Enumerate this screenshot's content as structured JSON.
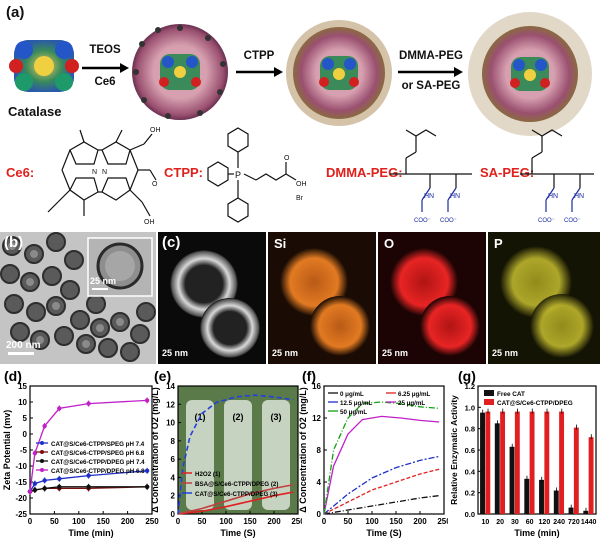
{
  "panel_a": {
    "label": "(a)",
    "catalase_label": "Catalase",
    "step1": [
      "TEOS",
      "Ce6"
    ],
    "step2": "CTPP",
    "step3": [
      "DMMA-PEG",
      "or SA-PEG"
    ],
    "chem": {
      "ce6": "Ce6:",
      "ctpp": "CTPP:",
      "dmma": "DMMA-PEG:",
      "sa": "SA-PEG:"
    }
  },
  "panel_b": {
    "label": "(b)",
    "scale_main": "200 nm",
    "scale_inset": "25 nm"
  },
  "panel_c": {
    "label": "(c)",
    "channels": [
      "Si",
      "O",
      "P"
    ],
    "scale": "25 nm",
    "colors": {
      "si": "#e0741e",
      "o": "#d81c1c",
      "p": "#c8c020"
    }
  },
  "chart_data": [
    {
      "panel": "(d)",
      "type": "line",
      "xlabel": "Time (min)",
      "ylabel": "Zeta Potential (mv)",
      "xlim": [
        0,
        250
      ],
      "ylim": [
        -25,
        15
      ],
      "xticks": [
        0,
        50,
        100,
        150,
        200,
        250
      ],
      "yticks": [
        -25,
        -20,
        -15,
        -10,
        -5,
        0,
        5,
        10,
        15
      ],
      "legend": "center-right",
      "series": [
        {
          "name": "CAT@S/Ce6-CTPP/SPEG  pH 7.4",
          "color": "#1f2fc8",
          "x": [
            0,
            10,
            30,
            60,
            120,
            240
          ],
          "y": [
            -18,
            -15.5,
            -14.5,
            -14,
            -13,
            -11.5
          ]
        },
        {
          "name": "CAT@S/Ce6-CTPP/SPEG  pH 6.8",
          "color": "#7a1010",
          "x": [
            0,
            10,
            30,
            60,
            120,
            240
          ],
          "y": [
            -18,
            -17.5,
            -17,
            -17,
            -17,
            -16.5
          ]
        },
        {
          "name": "CAT@S/Ce6-CTPP/DPEG  pH 7.4",
          "color": "#101010",
          "x": [
            0,
            10,
            30,
            60,
            120,
            240
          ],
          "y": [
            -18,
            -17.5,
            -17,
            -16.5,
            -16.5,
            -16.5
          ]
        },
        {
          "name": "CAT@S/Ce6-CTPP/DPEG  pH 6.8",
          "color": "#c020c8",
          "x": [
            0,
            10,
            30,
            60,
            120,
            240
          ],
          "y": [
            -18,
            -6,
            2.5,
            8,
            9.5,
            10.5
          ]
        }
      ]
    },
    {
      "panel": "(e)",
      "type": "line",
      "xlabel": "Time (S)",
      "ylabel": "Δ Concentration of O2 (mg/L)",
      "xlim": [
        0,
        250
      ],
      "ylim": [
        0,
        14
      ],
      "xticks": [
        0,
        50,
        100,
        150,
        200,
        250
      ],
      "yticks": [
        0,
        2,
        4,
        6,
        8,
        10,
        12,
        14
      ],
      "inset_labels": [
        "(1)",
        "(2)",
        "(3)"
      ],
      "series": [
        {
          "name": "H2O2 (1)",
          "color": "#e02020",
          "x": [
            0,
            50,
            100,
            150,
            200,
            240
          ],
          "y": [
            0,
            0.3,
            0.8,
            1.4,
            2.0,
            2.4
          ]
        },
        {
          "name": "BSA@S/Ce6-CTPP/DPEG (2)",
          "color": "#c04040",
          "x": [
            0,
            50,
            100,
            150,
            200,
            240
          ],
          "y": [
            0,
            0.6,
            1.4,
            2.2,
            2.8,
            3.2
          ]
        },
        {
          "name": "CAT@S/Ce6-CTPP/DPEG (3)",
          "color": "#2040e0",
          "x": [
            0,
            10,
            25,
            50,
            80,
            120,
            160,
            200,
            240
          ],
          "y": [
            0,
            5,
            8.5,
            11,
            12.2,
            12.8,
            13,
            12.8,
            12.5
          ]
        }
      ]
    },
    {
      "panel": "(f)",
      "type": "line",
      "xlabel": "Time (S)",
      "ylabel": "Δ Concentration of O2 (mg/L)",
      "xlim": [
        0,
        250
      ],
      "ylim": [
        0,
        16
      ],
      "xticks": [
        0,
        50,
        100,
        150,
        200,
        250
      ],
      "yticks": [
        0,
        4,
        8,
        12,
        16
      ],
      "legend": "top",
      "series": [
        {
          "name": "0 μg/mL",
          "color": "#101010",
          "x": [
            0,
            50,
            100,
            150,
            200,
            240
          ],
          "y": [
            0,
            0.5,
            1.0,
            1.5,
            2.0,
            2.3
          ]
        },
        {
          "name": "6.25 μg/mL",
          "color": "#e02020",
          "x": [
            0,
            50,
            100,
            150,
            200,
            240
          ],
          "y": [
            0,
            1.5,
            3.0,
            4.0,
            5.0,
            5.6
          ]
        },
        {
          "name": "12.5 μg/mL",
          "color": "#2030c8",
          "x": [
            0,
            50,
            100,
            150,
            200,
            240
          ],
          "y": [
            0,
            2.5,
            4.5,
            5.8,
            6.7,
            7.2
          ]
        },
        {
          "name": "25 μg/mL",
          "color": "#c020c8",
          "x": [
            0,
            20,
            50,
            80,
            120,
            160,
            200,
            240
          ],
          "y": [
            0,
            6,
            10,
            11.8,
            12.2,
            12.0,
            11.7,
            11.5
          ]
        },
        {
          "name": "50 μg/mL",
          "color": "#10a010",
          "x": [
            0,
            20,
            50,
            80,
            120,
            160,
            200,
            240
          ],
          "y": [
            0,
            8,
            12,
            13.8,
            14.0,
            13.8,
            13.4,
            13.2
          ]
        }
      ]
    },
    {
      "panel": "(g)",
      "type": "bar",
      "xlabel": "Time (min)",
      "ylabel": "Relative Enzymatic Activity",
      "ylim": [
        0,
        1.2
      ],
      "yticks": [
        0.0,
        0.2,
        0.4,
        0.6,
        0.8,
        1.0,
        1.2
      ],
      "categories": [
        "10",
        "20",
        "30",
        "60",
        "120",
        "240",
        "720",
        "1440"
      ],
      "legend": "top",
      "series": [
        {
          "name": "Free CAT",
          "color": "#111111",
          "values": [
            0.95,
            0.85,
            0.63,
            0.33,
            0.32,
            0.22,
            0.06,
            0.03
          ]
        },
        {
          "name": "CAT@S/Ce6-CTPP/DPEG",
          "color": "#e02020",
          "values": [
            0.96,
            0.96,
            0.96,
            0.96,
            0.96,
            0.96,
            0.81,
            0.72
          ]
        }
      ]
    }
  ]
}
